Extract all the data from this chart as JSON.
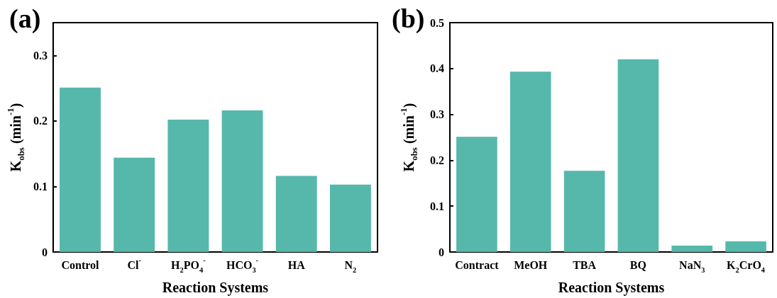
{
  "chart_data": [
    {
      "type": "bar",
      "title": "(a)",
      "xlabel": "Reaction Systems",
      "ylabel": "K$_{obs}$ (min$^{-1}$)",
      "categories": [
        "Control",
        "Cl$^{-}$",
        "H$_{2}$PO$_{4}$$^{-}$",
        "HCO$_{3}$$^{-}$",
        "HA",
        "N$_{2}$"
      ],
      "values": [
        0.251,
        0.144,
        0.202,
        0.216,
        0.116,
        0.103
      ],
      "color": "#56b8aa",
      "ylim": [
        0,
        0.35
      ],
      "yticks": [
        0,
        0.1,
        0.2,
        0.3
      ]
    },
    {
      "type": "bar",
      "title": "(b)",
      "xlabel": "Reaction Systems",
      "ylabel": "K$_{obs}$ (min$^{-1}$)",
      "categories": [
        "Contract",
        "MeOH",
        "TBA",
        "BQ",
        "NaN$_{3}$",
        "K$_{2}$CrO$_{4}$"
      ],
      "values": [
        0.251,
        0.393,
        0.177,
        0.42,
        0.014,
        0.023
      ],
      "color": "#56b8aa",
      "ylim": [
        0,
        0.5
      ],
      "yticks": [
        0,
        0.1,
        0.2,
        0.3,
        0.4,
        0.5
      ]
    }
  ]
}
